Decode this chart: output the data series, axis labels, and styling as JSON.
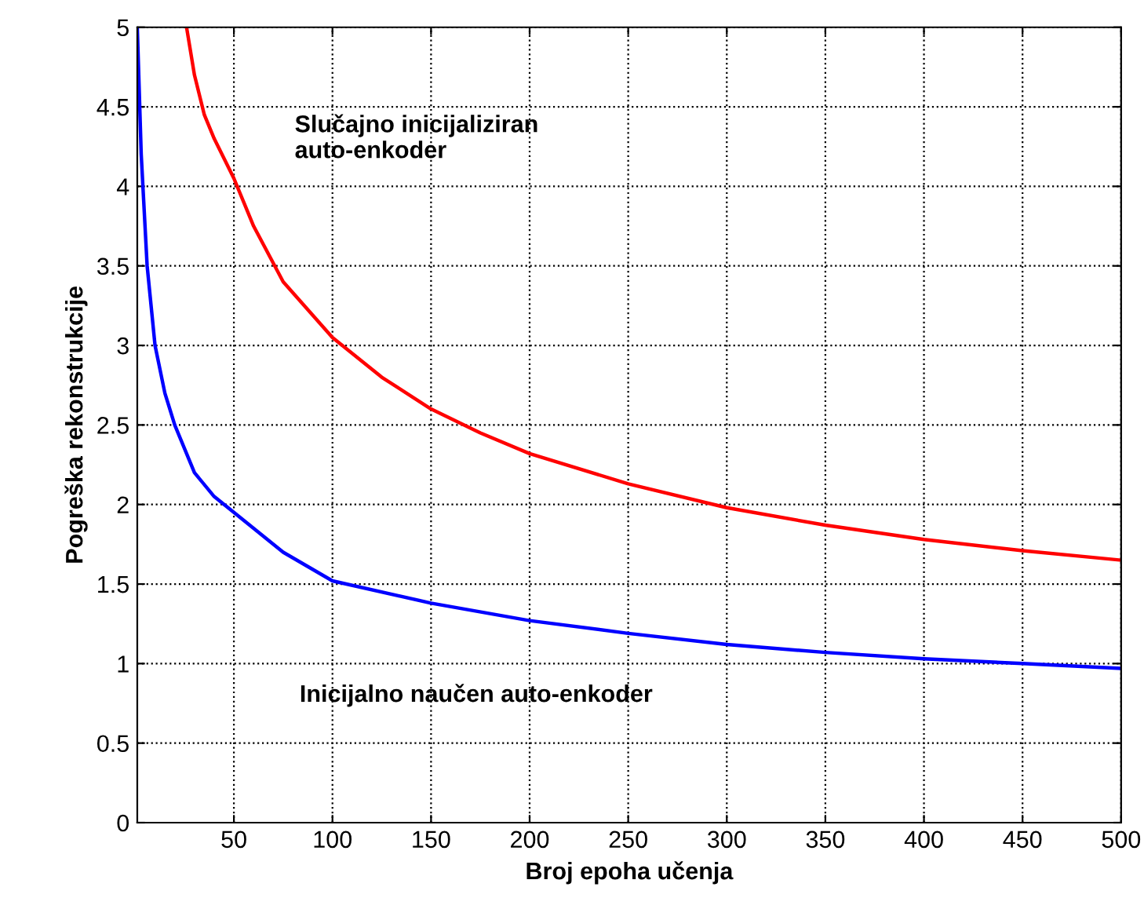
{
  "chart_data": {
    "type": "line",
    "xlabel": "Broj epoha učenja",
    "ylabel": "Pogreška rekonstrukcije",
    "xlim": [
      1,
      500
    ],
    "ylim": [
      0,
      5
    ],
    "xticks": [
      50,
      100,
      150,
      200,
      250,
      300,
      350,
      400,
      450,
      500
    ],
    "yticks": [
      0,
      0.5,
      1,
      1.5,
      2,
      2.5,
      3,
      3.5,
      4,
      4.5,
      5
    ],
    "grid": true,
    "line_style": "solid",
    "series": [
      {
        "color": "#ff0000",
        "x": [
          26,
          30,
          35,
          40,
          50,
          60,
          75,
          100,
          125,
          150,
          175,
          200,
          250,
          300,
          350,
          400,
          450,
          500
        ],
        "values": [
          5,
          4.7,
          4.45,
          4.3,
          4.05,
          3.75,
          3.4,
          3.05,
          2.8,
          2.6,
          2.45,
          2.32,
          2.13,
          1.98,
          1.87,
          1.78,
          1.71,
          1.65
        ]
      },
      {
        "color": "#0000ff",
        "x": [
          1,
          3,
          6,
          10,
          15,
          20,
          30,
          40,
          50,
          75,
          100,
          150,
          200,
          250,
          300,
          350,
          400,
          450,
          500
        ],
        "values": [
          5,
          4.2,
          3.5,
          3.0,
          2.7,
          2.5,
          2.2,
          2.05,
          1.95,
          1.7,
          1.52,
          1.38,
          1.27,
          1.19,
          1.12,
          1.07,
          1.03,
          1.0,
          0.97
        ]
      }
    ],
    "annotations": [
      "Slučajno inicijaliziran\nauto-enkoder",
      "Inicijalno naučen auto-enkoder"
    ]
  }
}
